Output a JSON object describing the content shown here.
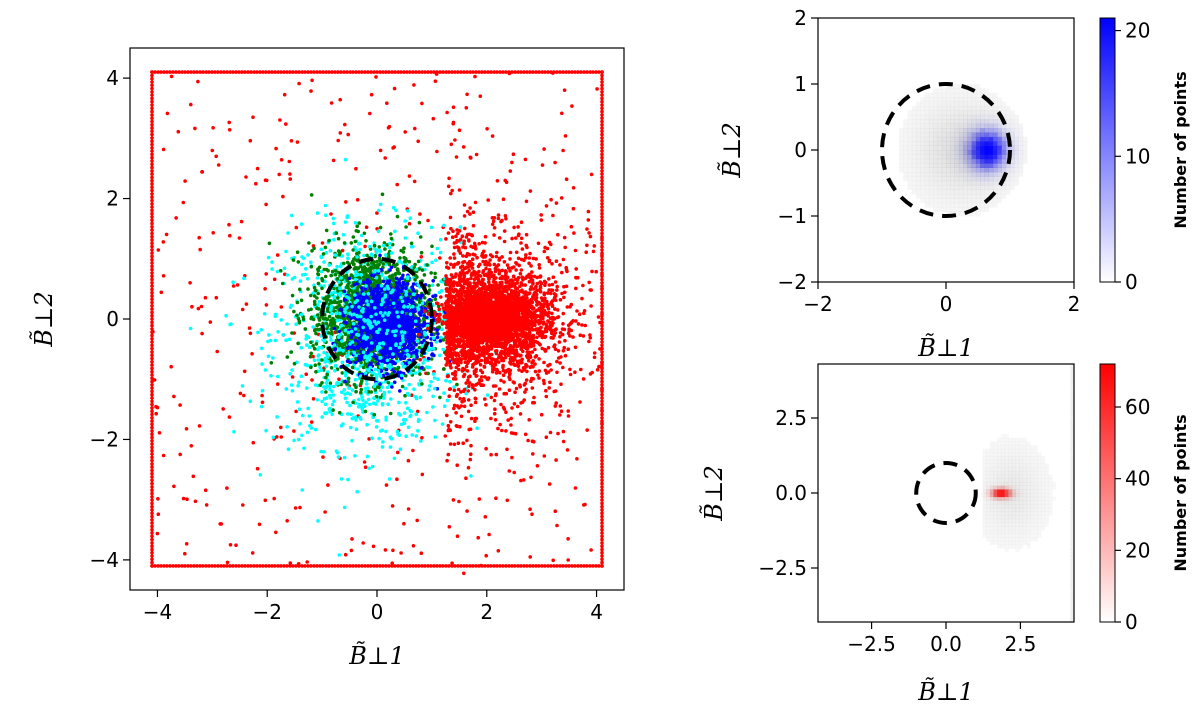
{
  "chart_data": [
    {
      "type": "scatter",
      "xlabel": "B̃⊥1",
      "ylabel": "B̃⊥2",
      "xlim": [
        -4.5,
        4.5
      ],
      "ylim": [
        -4.5,
        4.5
      ],
      "xticks": [
        "−4",
        "−2",
        "0",
        "2",
        "4"
      ],
      "yticks": [
        "−4",
        "−2",
        "0",
        "2",
        "4"
      ],
      "grid": false,
      "legend": "none",
      "reference_circle": {
        "center": [
          0,
          0
        ],
        "radius": 1,
        "style": "dashed",
        "color": "#000000"
      },
      "series": [
        {
          "color": "#ff0000",
          "cluster": {
            "center": [
              2.1,
              0.0
            ],
            "spread": [
              0.9,
              0.8
            ],
            "core": [
              2.0,
              0.05
            ]
          },
          "uniform_background": {
            "range": [
              -4.1,
              4.1
            ]
          },
          "border_box": 4.1
        },
        {
          "color": "#00ffff",
          "cluster": {
            "center": [
              -0.2,
              -0.3
            ],
            "spread": [
              0.85,
              0.9
            ]
          }
        },
        {
          "color": "#008000",
          "cluster": {
            "center": [
              -0.1,
              0.1
            ],
            "spread": [
              0.55,
              0.55
            ]
          }
        },
        {
          "color": "#0000ff",
          "cluster": {
            "center": [
              0.2,
              -0.1
            ],
            "spread": [
              0.35,
              0.35
            ]
          }
        }
      ]
    },
    {
      "type": "heatmap",
      "xlabel": "B̃⊥1",
      "ylabel": "B̃⊥2",
      "xlim": [
        -2,
        2
      ],
      "ylim": [
        -2,
        2
      ],
      "xticks": [
        "−2",
        "0",
        "2"
      ],
      "yticks": [
        "−2",
        "−1",
        "0",
        "1",
        "2"
      ],
      "colormap": [
        "#ffffff",
        "#0000ff"
      ],
      "colorbar": {
        "label": "Number of points",
        "range": [
          0,
          21
        ],
        "ticks": [
          "0",
          "10",
          "20"
        ]
      },
      "peak": [
        0.65,
        0.0
      ],
      "reference_circle": {
        "center": [
          0,
          0
        ],
        "radius": 1,
        "style": "dashed"
      }
    },
    {
      "type": "heatmap",
      "xlabel": "B̃⊥1",
      "ylabel": "B̃⊥2",
      "xlim": [
        -4.3,
        4.3
      ],
      "ylim": [
        -4.3,
        4.3
      ],
      "xticks": [
        "−2.5",
        "0.0",
        "2.5"
      ],
      "yticks": [
        "−2.5",
        "0.0",
        "2.5"
      ],
      "colormap": [
        "#ffffff",
        "#ff0000"
      ],
      "colorbar": {
        "label": "Number of points",
        "range": [
          0,
          72
        ],
        "ticks": [
          "0",
          "20",
          "40",
          "60"
        ]
      },
      "peak": [
        1.85,
        0.0
      ],
      "reference_circle": {
        "center": [
          0,
          0
        ],
        "radius": 1,
        "style": "dashed"
      }
    }
  ]
}
